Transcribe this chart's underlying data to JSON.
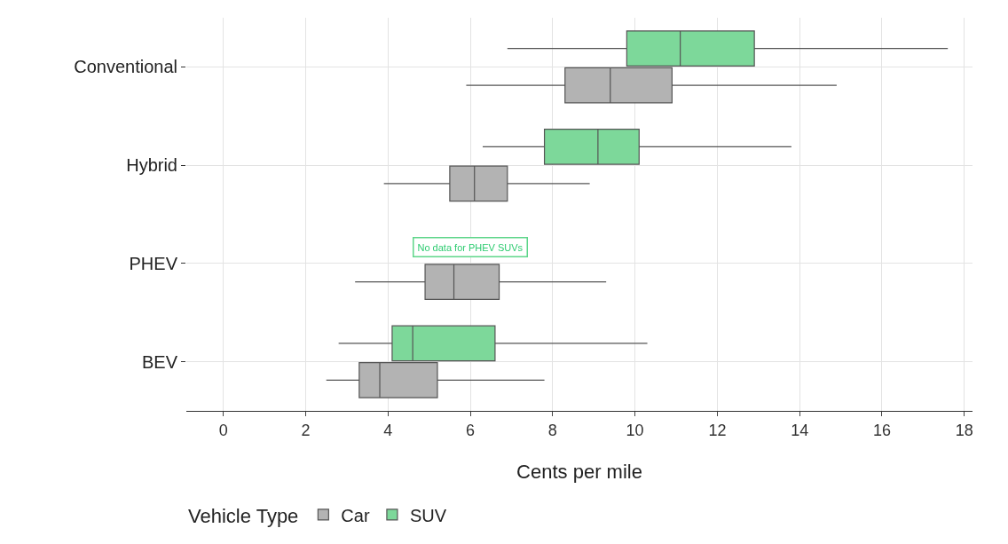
{
  "chart_data": {
    "type": "box",
    "orientation": "horizontal",
    "xlabel": "Cents per mile",
    "legend_title": "Vehicle Type",
    "legend": "bottom",
    "grid": true,
    "categories": [
      "Conventional",
      "Hybrid",
      "PHEV",
      "BEV"
    ],
    "xlim": [
      -0.9,
      18.2
    ],
    "xticks": [
      0,
      2,
      4,
      6,
      8,
      10,
      12,
      14,
      16,
      18
    ],
    "annotations": [
      {
        "text": "No data for PHEV SUVs",
        "x": 6,
        "y": "PHEV"
      }
    ],
    "series": [
      {
        "name": "Car",
        "color": "#b3b3b3",
        "boxes": [
          {
            "low": 5.9,
            "q1": 8.3,
            "median": 9.4,
            "q3": 10.9,
            "high": 14.9
          },
          {
            "low": 3.9,
            "q1": 5.5,
            "median": 6.1,
            "q3": 6.9,
            "high": 8.9
          },
          {
            "low": 3.2,
            "q1": 4.9,
            "median": 5.6,
            "q3": 6.7,
            "high": 9.3
          },
          {
            "low": 2.5,
            "q1": 3.3,
            "median": 3.8,
            "q3": 5.2,
            "high": 7.8
          }
        ]
      },
      {
        "name": "SUV",
        "color": "#7dd89a",
        "boxes": [
          {
            "low": 6.9,
            "q1": 9.8,
            "median": 11.1,
            "q3": 12.9,
            "high": 17.6
          },
          {
            "low": 6.3,
            "q1": 7.8,
            "median": 9.1,
            "q3": 10.1,
            "high": 13.8
          },
          null,
          {
            "low": 2.8,
            "q1": 4.1,
            "median": 4.6,
            "q3": 6.6,
            "high": 10.3
          }
        ]
      }
    ]
  }
}
